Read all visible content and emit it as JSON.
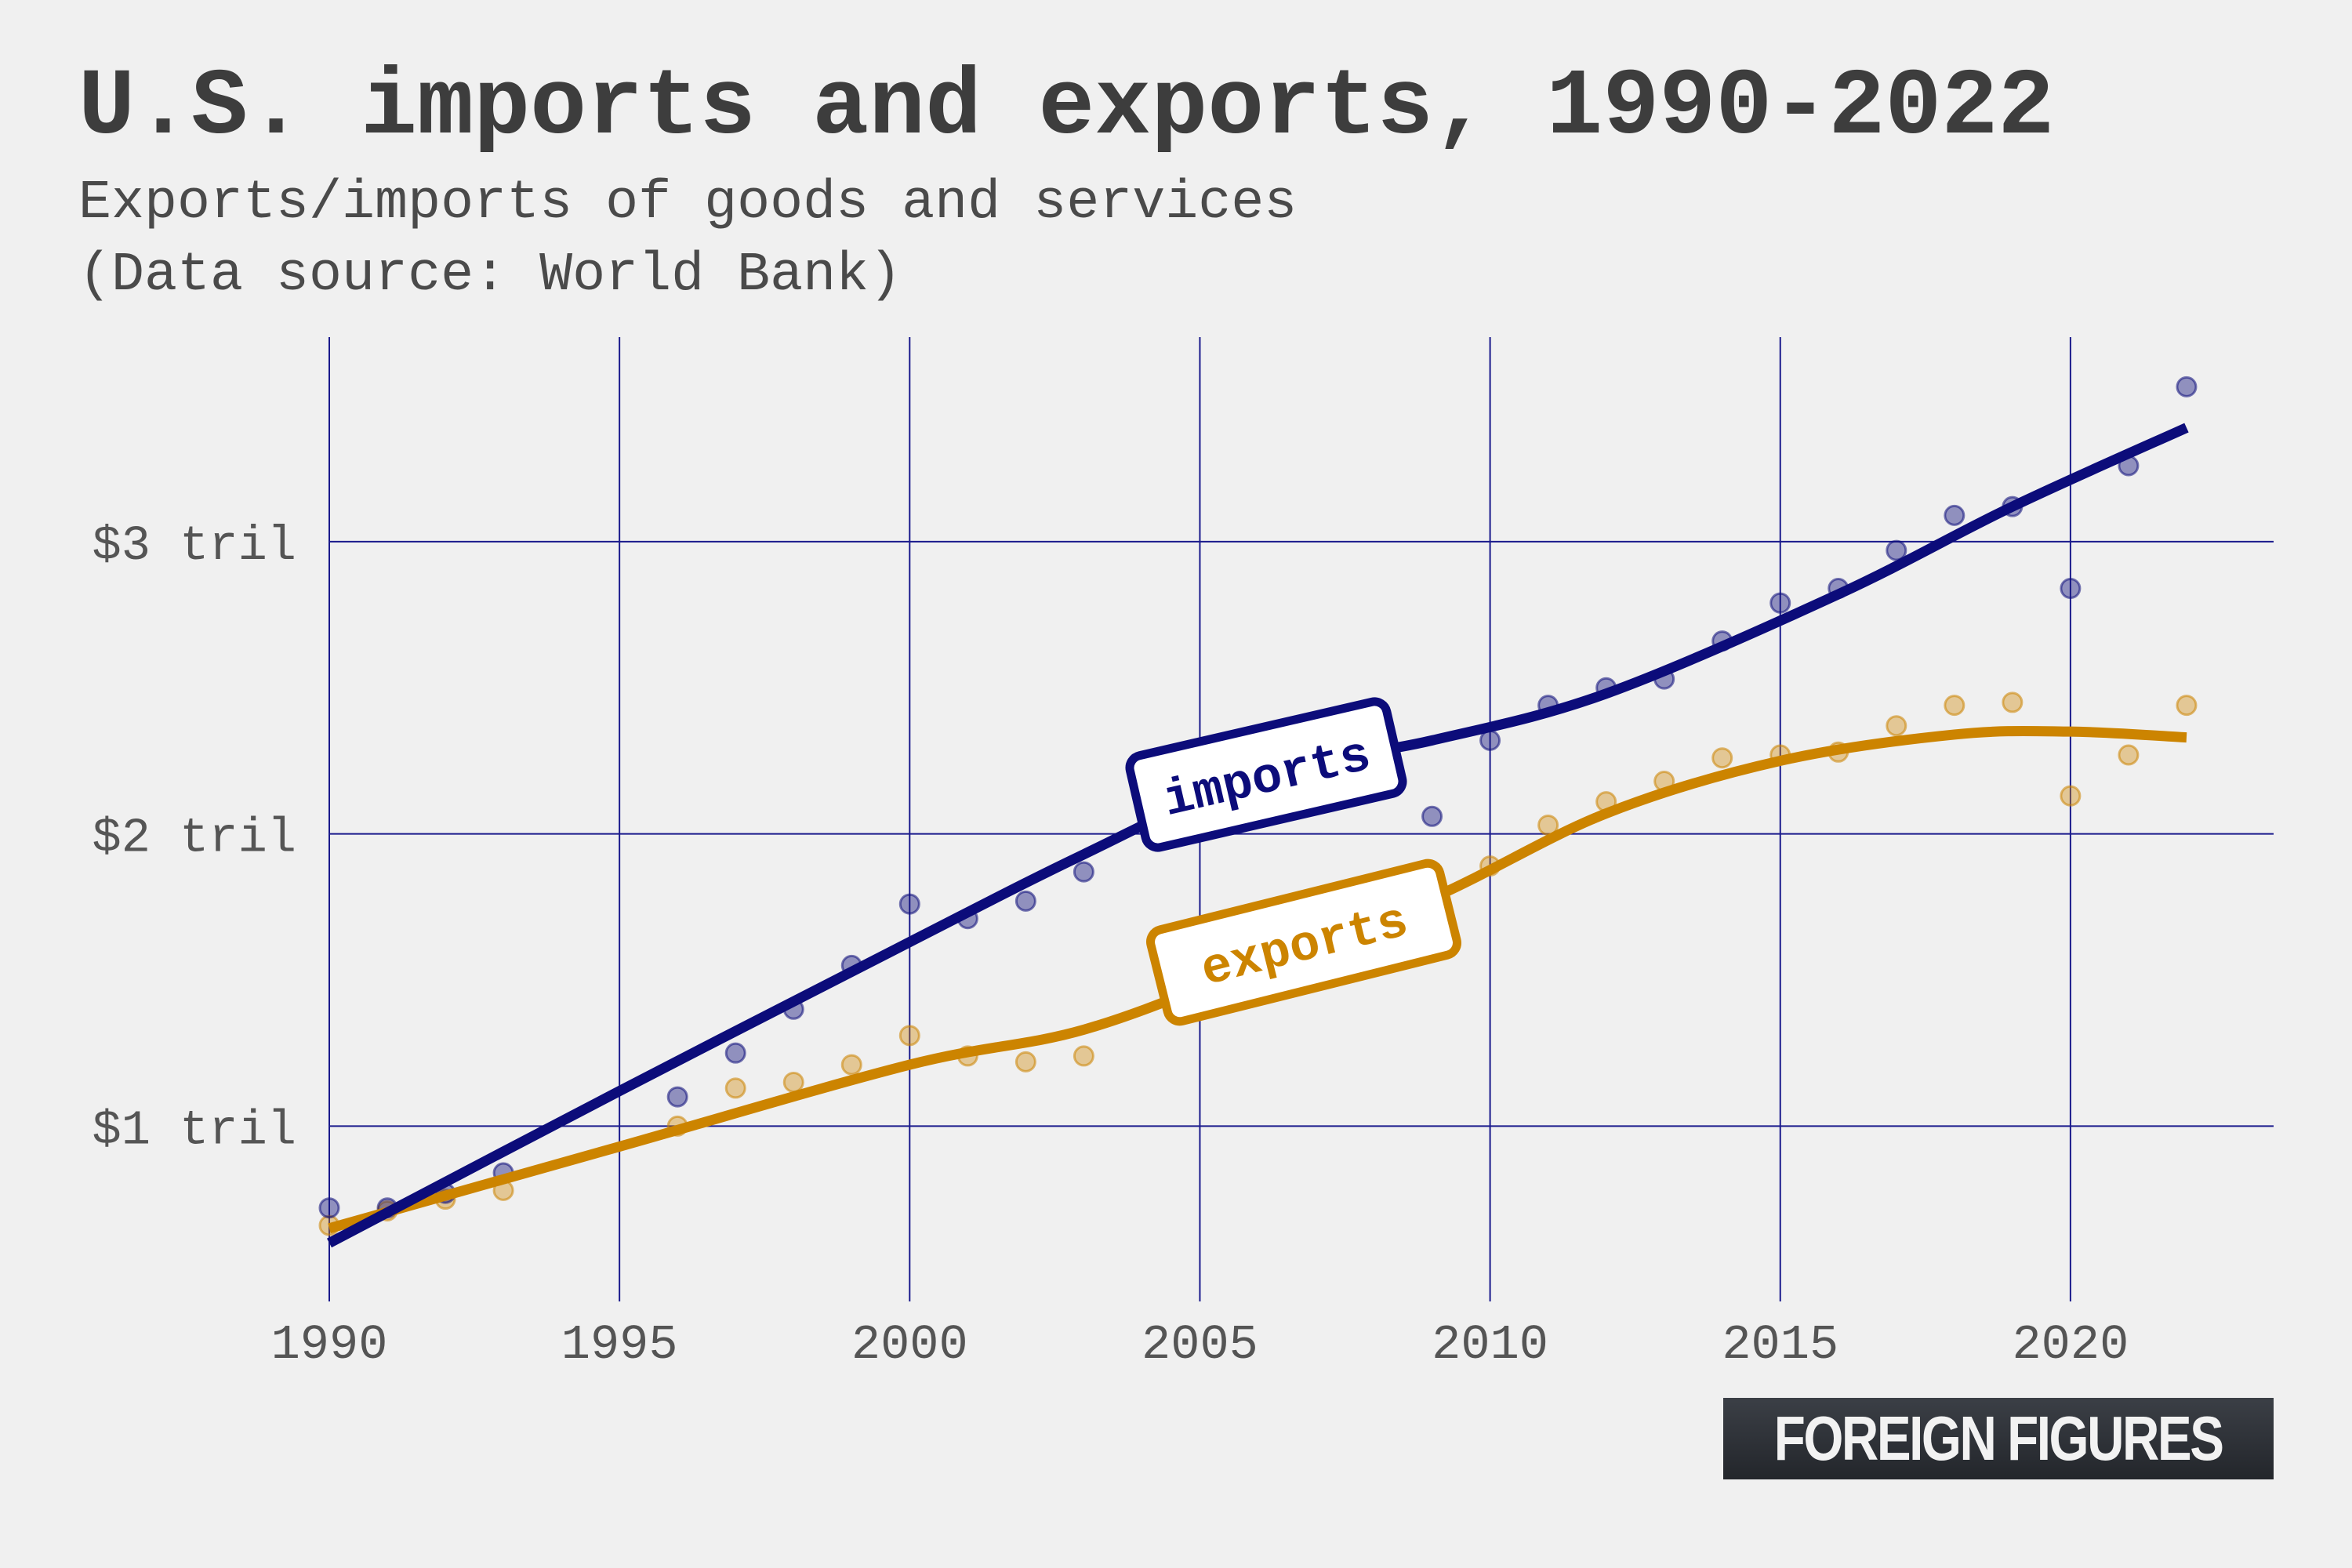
{
  "header": {
    "title": "U.S. imports and exports, 1990-2022",
    "subtitle_line1": "Exports/imports of goods and services",
    "subtitle_line2": "(Data source: World Bank)"
  },
  "brand": {
    "label": "FOREIGN FIGURES"
  },
  "colors": {
    "imports": "#0c0c7a",
    "exports": "#cc8400",
    "grid": "#1a1a8c",
    "background": "#f0f0f0"
  },
  "chart_data": {
    "type": "scatter",
    "title": "U.S. imports and exports, 1990-2022",
    "xlabel": "",
    "ylabel": "",
    "xlim": [
      1990,
      2023.5
    ],
    "ylim": [
      0.4,
      3.7
    ],
    "x_ticks": [
      1990,
      1995,
      2000,
      2005,
      2010,
      2015,
      2020
    ],
    "y_ticks": [
      1,
      2,
      3
    ],
    "y_tick_labels": [
      "$1 tril",
      "$2 tril",
      "$3 tril"
    ],
    "grid": true,
    "legend": "inline labels",
    "series": [
      {
        "name": "imports",
        "x": [
          1990,
          1991,
          1992,
          1993,
          1996,
          1997,
          1998,
          1999,
          2000,
          2001,
          2002,
          2003,
          2009,
          2010,
          2011,
          2012,
          2013,
          2014,
          2015,
          2016,
          2017,
          2018,
          2019,
          2020,
          2021,
          2022
        ],
        "y": [
          0.72,
          0.72,
          0.77,
          0.84,
          1.1,
          1.25,
          1.4,
          1.55,
          1.76,
          1.71,
          1.77,
          1.87,
          2.06,
          2.32,
          2.44,
          2.5,
          2.53,
          2.66,
          2.79,
          2.84,
          2.97,
          3.09,
          3.12,
          2.84,
          3.26,
          3.53
        ],
        "trend_x": [
          1990,
          1995,
          2000,
          2003,
          2006,
          2009,
          2012,
          2016,
          2019,
          2022
        ],
        "trend_y": [
          0.6,
          1.12,
          1.63,
          1.93,
          2.2,
          2.32,
          2.48,
          2.82,
          3.12,
          3.39
        ]
      },
      {
        "name": "exports",
        "x": [
          1990,
          1991,
          1992,
          1993,
          1996,
          1997,
          1998,
          1999,
          2000,
          2001,
          2002,
          2003,
          2009,
          2010,
          2011,
          2012,
          2013,
          2014,
          2015,
          2016,
          2017,
          2018,
          2019,
          2020,
          2021,
          2022
        ],
        "y": [
          0.66,
          0.71,
          0.75,
          0.78,
          1.0,
          1.13,
          1.15,
          1.21,
          1.31,
          1.24,
          1.22,
          1.24,
          1.68,
          1.89,
          2.03,
          2.11,
          2.18,
          2.26,
          2.27,
          2.28,
          2.37,
          2.44,
          2.45,
          2.13,
          2.27,
          2.44
        ],
        "trend_x": [
          1990,
          1995,
          2000,
          2003,
          2006,
          2009,
          2012,
          2015,
          2018,
          2020,
          2022
        ],
        "trend_y": [
          0.65,
          0.93,
          1.21,
          1.33,
          1.55,
          1.78,
          2.07,
          2.25,
          2.34,
          2.35,
          2.33
        ]
      }
    ]
  }
}
